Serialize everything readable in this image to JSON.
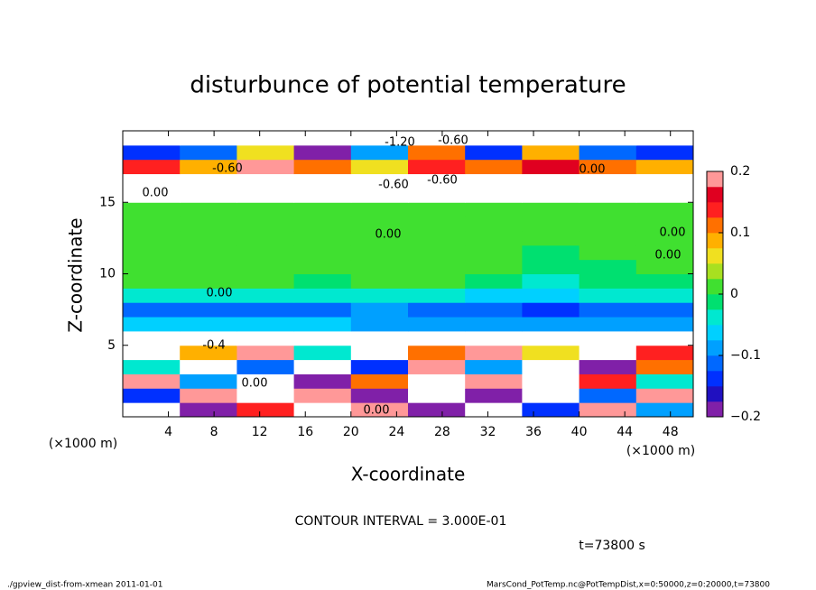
{
  "chart_data": {
    "type": "heatmap",
    "title": "disturbunce of potential temperature",
    "x_label": "X-coordinate",
    "y_label": "Z-coordinate",
    "x_unit": "(×1000 m)",
    "x_unit_right": "(×1000 m)",
    "xlim": [
      0,
      50
    ],
    "ylim": [
      0,
      20
    ],
    "xticks": [
      4,
      8,
      12,
      16,
      20,
      24,
      28,
      32,
      36,
      40,
      44,
      48
    ],
    "yticks": [
      5,
      10,
      15
    ],
    "z": [
      [
        0.25,
        -0.2,
        0.15,
        -0.25,
        0.2,
        -0.2,
        0.25,
        -0.15,
        0.2,
        -0.1
      ],
      [
        -0.15,
        0.2,
        -0.25,
        0.18,
        -0.2,
        0.25,
        -0.18,
        0.22,
        -0.12,
        0.2
      ],
      [
        0.18,
        -0.1,
        0.25,
        -0.18,
        0.12,
        -0.22,
        0.2,
        -0.25,
        0.15,
        -0.05
      ],
      [
        -0.05,
        0.22,
        -0.12,
        0.25,
        -0.15,
        0.18,
        -0.1,
        0.25,
        -0.2,
        0.12
      ],
      [
        0.22,
        0.08,
        0.18,
        -0.05,
        0.25,
        0.1,
        0.2,
        0.05,
        0.25,
        0.15
      ],
      [
        0.3,
        0.3,
        0.3,
        0.3,
        0.3,
        0.3,
        0.3,
        0.3,
        0.3,
        0.3
      ],
      [
        -0.07,
        -0.07,
        -0.06,
        -0.07,
        -0.08,
        -0.08,
        -0.09,
        -0.1,
        -0.09,
        -0.08
      ],
      [
        -0.11,
        -0.12,
        -0.11,
        -0.12,
        -0.1,
        -0.11,
        -0.12,
        -0.13,
        -0.12,
        -0.11
      ],
      [
        -0.04,
        -0.05,
        -0.04,
        -0.05,
        -0.04,
        -0.05,
        -0.06,
        -0.07,
        -0.05,
        -0.04
      ],
      [
        0.0,
        0.01,
        0.0,
        -0.01,
        0.0,
        0.0,
        -0.02,
        -0.03,
        -0.02,
        -0.01
      ],
      [
        0.01,
        0.02,
        0.01,
        0.0,
        0.01,
        0.0,
        0.02,
        -0.02,
        -0.01,
        0.0
      ],
      [
        0.01,
        0.01,
        0.02,
        0.01,
        0.0,
        0.01,
        0.0,
        -0.01,
        0.0,
        0.01
      ],
      [
        0.01,
        0.02,
        0.01,
        0.01,
        0.01,
        0.0,
        0.01,
        0.0,
        0.01,
        0.0
      ],
      [
        0.0,
        0.01,
        0.01,
        0.0,
        0.01,
        0.01,
        0.0,
        0.01,
        0.0,
        0.01
      ],
      [
        0.01,
        0.0,
        0.01,
        0.01,
        0.0,
        0.01,
        0.01,
        0.0,
        0.01,
        0.0
      ],
      [
        0.3,
        0.3,
        0.3,
        0.3,
        0.3,
        0.3,
        0.3,
        0.3,
        0.3,
        0.3
      ],
      [
        -0.3,
        -0.3,
        -0.3,
        -0.3,
        -0.3,
        -0.3,
        -0.3,
        -0.3,
        -0.3,
        -0.3
      ],
      [
        0.15,
        0.08,
        0.18,
        0.12,
        0.06,
        0.15,
        0.1,
        0.17,
        0.12,
        0.08
      ],
      [
        -0.15,
        -0.12,
        0.05,
        -0.18,
        -0.1,
        0.12,
        -0.15,
        0.08,
        -0.12,
        -0.14
      ],
      [
        0.3,
        0.3,
        0.3,
        0.3,
        0.3,
        0.3,
        0.3,
        0.3,
        0.3,
        0.3
      ]
    ],
    "clim": [
      -0.2,
      0.2
    ],
    "colormap": [
      "#8020a8",
      "#2010c0",
      "#0030ff",
      "#0068ff",
      "#00a0ff",
      "#00d0ff",
      "#00e8d0",
      "#00e070",
      "#40e030",
      "#a8e020",
      "#f0e020",
      "#ffb000",
      "#ff7000",
      "#ff2020",
      "#e00020",
      "#ff9898"
    ],
    "out_of_range_color": "#ffffff",
    "colorbar_ticks": [
      0.2,
      0.1,
      0,
      {
        "value": -0.1,
        "label": "−0.1"
      },
      {
        "value": -0.2,
        "label": "−0.2"
      }
    ],
    "annotations": [
      "-1.20",
      "-0.60",
      "-0.60",
      "0.00",
      "-0.60",
      "-0.60",
      "0.00",
      "0.00",
      "0.00",
      "0.00",
      "0.00",
      "0.00",
      "0.00",
      "-0.4"
    ],
    "contour_interval": "CONTOUR INTERVAL = 3.000E-01",
    "time_label": "t=73800 s",
    "footer_left": "./gpview_dist-from-xmean   2011-01-01",
    "footer_right": "MarsCond_PotTemp.nc@PotTempDist,x=0:50000,z=0:20000,t=73800"
  }
}
